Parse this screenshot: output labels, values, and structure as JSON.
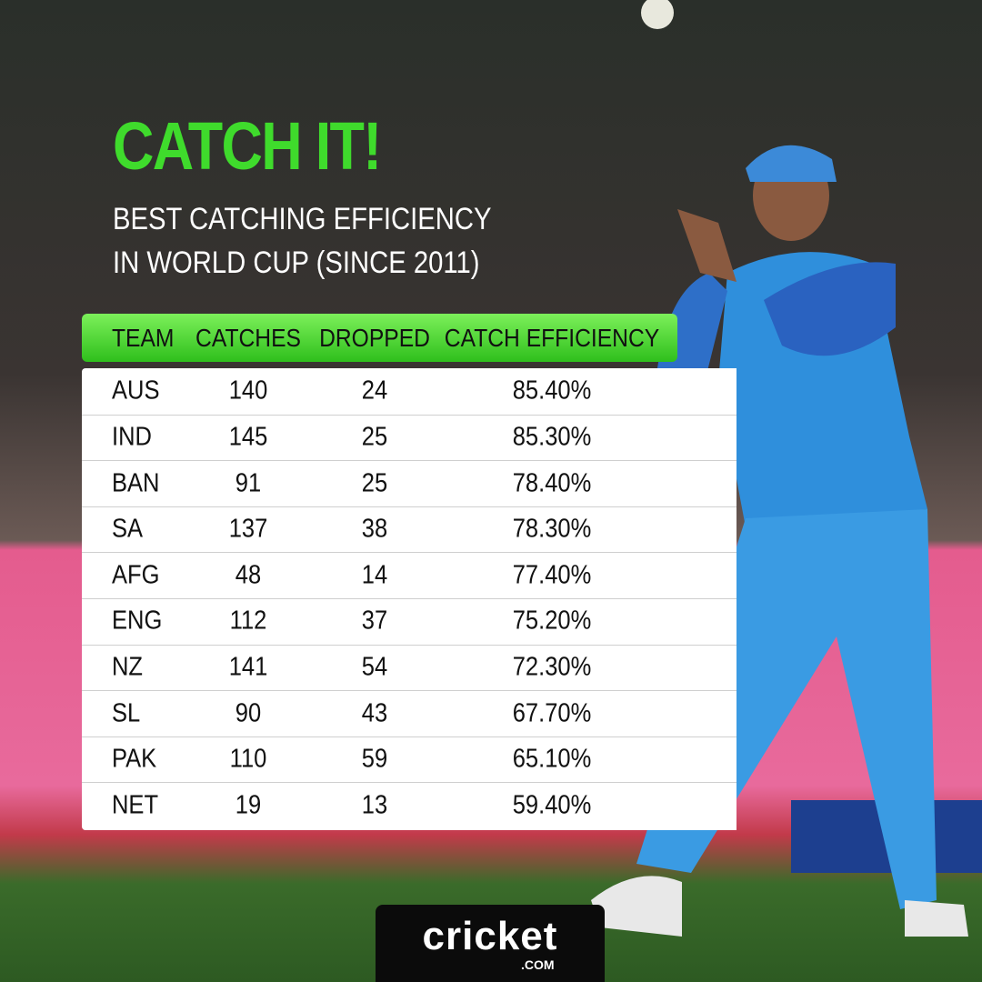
{
  "header": {
    "title": "CATCH IT!",
    "subtitle_lines": [
      "BEST CATCHING EFFICIENCY",
      "IN WORLD CUP (SINCE 2011)"
    ]
  },
  "table": {
    "columns": [
      "TEAM",
      "CATCHES",
      "DROPPED",
      "CATCH EFFICIENCY"
    ],
    "rows": [
      [
        "AUS",
        140,
        24,
        "85.40%"
      ],
      [
        "IND",
        145,
        25,
        "85.30%"
      ],
      [
        "BAN",
        91,
        25,
        "78.40%"
      ],
      [
        "SA",
        137,
        38,
        "78.30%"
      ],
      [
        "AFG",
        48,
        14,
        "77.40%"
      ],
      [
        "ENG",
        112,
        37,
        "75.20%"
      ],
      [
        "NZ",
        141,
        54,
        "72.30%"
      ],
      [
        "SL",
        90,
        43,
        "67.70%"
      ],
      [
        "PAK",
        110,
        59,
        "65.10%"
      ],
      [
        "NET",
        19,
        13,
        "59.40%"
      ]
    ]
  },
  "logo": {
    "name": "cricket",
    "suffix": ".COM"
  }
}
